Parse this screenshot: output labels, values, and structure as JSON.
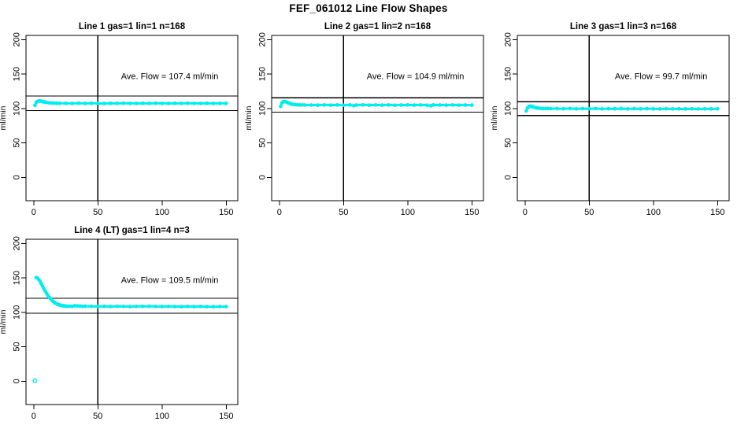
{
  "figure_title": "FEF_061012  Line Flow Shapes",
  "chart_data": {
    "type": "scatter",
    "title": "FEF_061012  Line Flow Shapes",
    "legend": "none",
    "grid": false,
    "marker": "open-circle",
    "panels": [
      {
        "position": {
          "row": 0,
          "col": 0
        },
        "title": "Line 1 gas=1 lin=1 n=168",
        "annotation": "Ave. Flow =  107.4  ml/min",
        "ave_flow_ml_min": 107.4,
        "ylabel": "ml/min",
        "x_ticks": [
          0,
          50,
          100,
          150
        ],
        "y_ticks": [
          0,
          50,
          100,
          150,
          200
        ],
        "x_range": [
          -6,
          159
        ],
        "y_range": [
          -34,
          206
        ],
        "vline_x": 50,
        "hlines": [
          118.1,
          96.7
        ],
        "marker_color": "#00EEEE",
        "points": [
          [
            1,
            104.5
          ],
          [
            2,
            108.6
          ],
          [
            3,
            110.2
          ],
          [
            4,
            110.8
          ],
          [
            5,
            110.7
          ],
          [
            6,
            110.3
          ],
          [
            7,
            109.8
          ],
          [
            8,
            109.4
          ],
          [
            9,
            109.0
          ],
          [
            10,
            108.7
          ],
          [
            12,
            108.2
          ],
          [
            14,
            107.9
          ],
          [
            16,
            107.7
          ],
          [
            18,
            107.6
          ],
          [
            20,
            107.5
          ],
          [
            25,
            107.5
          ],
          [
            30,
            107.3
          ],
          [
            35,
            107.6
          ],
          [
            40,
            107.2
          ],
          [
            45,
            107.5
          ],
          [
            50,
            107.4
          ],
          [
            55,
            107.1
          ],
          [
            60,
            107.5
          ],
          [
            65,
            107.3
          ],
          [
            70,
            107.6
          ],
          [
            75,
            107.4
          ],
          [
            80,
            107.2
          ],
          [
            85,
            107.5
          ],
          [
            90,
            107.3
          ],
          [
            95,
            107.6
          ],
          [
            100,
            107.4
          ],
          [
            105,
            107.2
          ],
          [
            110,
            107.5
          ],
          [
            115,
            107.3
          ],
          [
            120,
            107.6
          ],
          [
            125,
            107.4
          ],
          [
            130,
            107.2
          ],
          [
            135,
            107.5
          ],
          [
            140,
            107.3
          ],
          [
            145,
            107.4
          ],
          [
            150,
            107.4
          ]
        ],
        "outliers": []
      },
      {
        "position": {
          "row": 0,
          "col": 1
        },
        "title": "Line 2 gas=1 lin=2 n=168",
        "annotation": "Ave. Flow =  104.9  ml/min",
        "ave_flow_ml_min": 104.9,
        "ylabel": "ml/min",
        "x_ticks": [
          0,
          50,
          100,
          150
        ],
        "y_ticks": [
          0,
          50,
          100,
          150,
          200
        ],
        "x_range": [
          -6,
          159
        ],
        "y_range": [
          -34,
          206
        ],
        "vline_x": 50,
        "hlines": [
          115.4,
          94.4
        ],
        "marker_color": "#00EEEE",
        "points": [
          [
            1,
            103.0
          ],
          [
            2,
            107.8
          ],
          [
            3,
            109.6
          ],
          [
            4,
            110.0
          ],
          [
            5,
            109.6
          ],
          [
            6,
            108.9
          ],
          [
            7,
            108.1
          ],
          [
            8,
            107.2
          ],
          [
            9,
            106.5
          ],
          [
            10,
            106.0
          ],
          [
            12,
            105.5
          ],
          [
            14,
            105.2
          ],
          [
            16,
            105.1
          ],
          [
            18,
            105.0
          ],
          [
            20,
            104.9
          ],
          [
            25,
            104.9
          ],
          [
            30,
            104.7
          ],
          [
            35,
            105.1
          ],
          [
            40,
            104.8
          ],
          [
            45,
            105.0
          ],
          [
            50,
            104.6
          ],
          [
            55,
            105.0
          ],
          [
            58,
            103.9
          ],
          [
            60,
            104.9
          ],
          [
            65,
            105.1
          ],
          [
            70,
            104.7
          ],
          [
            75,
            105.0
          ],
          [
            80,
            104.8
          ],
          [
            85,
            105.1
          ],
          [
            90,
            104.6
          ],
          [
            95,
            104.9
          ],
          [
            100,
            105.0
          ],
          [
            105,
            104.7
          ],
          [
            110,
            105.0
          ],
          [
            115,
            104.8
          ],
          [
            118,
            103.8
          ],
          [
            120,
            105.0
          ],
          [
            125,
            104.9
          ],
          [
            130,
            104.7
          ],
          [
            135,
            105.0
          ],
          [
            140,
            104.8
          ],
          [
            145,
            104.9
          ],
          [
            150,
            104.8
          ]
        ],
        "outliers": []
      },
      {
        "position": {
          "row": 0,
          "col": 2
        },
        "title": "Line 3 gas=1 lin=3 n=168",
        "annotation": "Ave. Flow =  99.7  ml/min",
        "ave_flow_ml_min": 99.7,
        "ylabel": "ml/min",
        "x_ticks": [
          0,
          50,
          100,
          150
        ],
        "y_ticks": [
          0,
          50,
          100,
          150,
          200
        ],
        "x_range": [
          -6,
          159
        ],
        "y_range": [
          -34,
          206
        ],
        "vline_x": 50,
        "hlines": [
          109.7,
          89.7
        ],
        "marker_color": "#00EEEE",
        "points": [
          [
            1,
            96.5
          ],
          [
            2,
            100.8
          ],
          [
            3,
            102.6
          ],
          [
            4,
            103.2
          ],
          [
            5,
            103.0
          ],
          [
            6,
            102.5
          ],
          [
            7,
            101.8
          ],
          [
            8,
            101.2
          ],
          [
            9,
            100.7
          ],
          [
            10,
            100.4
          ],
          [
            12,
            100.1
          ],
          [
            14,
            99.9
          ],
          [
            16,
            99.8
          ],
          [
            18,
            99.8
          ],
          [
            20,
            99.7
          ],
          [
            25,
            99.7
          ],
          [
            30,
            99.5
          ],
          [
            35,
            99.8
          ],
          [
            40,
            99.4
          ],
          [
            45,
            99.7
          ],
          [
            50,
            99.5
          ],
          [
            55,
            99.8
          ],
          [
            60,
            99.3
          ],
          [
            65,
            99.6
          ],
          [
            70,
            99.5
          ],
          [
            75,
            99.7
          ],
          [
            80,
            99.3
          ],
          [
            85,
            99.6
          ],
          [
            90,
            99.4
          ],
          [
            95,
            99.7
          ],
          [
            100,
            99.4
          ],
          [
            105,
            99.2
          ],
          [
            110,
            99.6
          ],
          [
            115,
            99.3
          ],
          [
            120,
            99.5
          ],
          [
            125,
            99.2
          ],
          [
            130,
            99.5
          ],
          [
            135,
            99.3
          ],
          [
            140,
            99.4
          ],
          [
            145,
            99.2
          ],
          [
            150,
            99.5
          ]
        ],
        "outliers": []
      },
      {
        "position": {
          "row": 1,
          "col": 0
        },
        "title": "Line 4 (LT) gas=1 lin=4 n=3",
        "annotation": "Ave. Flow =  109.5  ml/min",
        "ave_flow_ml_min": 109.5,
        "ylabel": "ml/min",
        "x_ticks": [
          0,
          50,
          100,
          150
        ],
        "y_ticks": [
          0,
          50,
          100,
          150,
          200
        ],
        "x_range": [
          -6,
          159
        ],
        "y_range": [
          -34,
          206
        ],
        "vline_x": 50,
        "hlines": [
          120.5,
          98.6
        ],
        "marker_color": "#00EEEE",
        "points": [
          [
            2,
            150.3
          ],
          [
            3,
            149.5
          ],
          [
            4,
            147.5
          ],
          [
            5,
            144.5
          ],
          [
            6,
            141.0
          ],
          [
            7,
            137.5
          ],
          [
            8,
            134.0
          ],
          [
            9,
            130.5
          ],
          [
            10,
            127.5
          ],
          [
            11,
            124.5
          ],
          [
            12,
            122.0
          ],
          [
            13,
            119.8
          ],
          [
            14,
            117.8
          ],
          [
            15,
            116.0
          ],
          [
            16,
            114.5
          ],
          [
            17,
            113.2
          ],
          [
            18,
            112.2
          ],
          [
            19,
            111.3
          ],
          [
            20,
            110.6
          ],
          [
            21,
            110.1
          ],
          [
            22,
            109.7
          ],
          [
            23,
            109.4
          ],
          [
            24,
            109.1
          ],
          [
            25,
            108.9
          ],
          [
            26,
            108.8
          ],
          [
            28,
            108.6
          ],
          [
            30,
            108.5
          ],
          [
            32,
            109.4
          ],
          [
            34,
            109.2
          ],
          [
            36,
            109.0
          ],
          [
            38,
            108.8
          ],
          [
            40,
            108.7
          ],
          [
            45,
            108.6
          ],
          [
            50,
            108.4
          ],
          [
            55,
            108.6
          ],
          [
            60,
            108.3
          ],
          [
            65,
            108.6
          ],
          [
            70,
            108.4
          ],
          [
            75,
            108.2
          ],
          [
            80,
            108.5
          ],
          [
            85,
            108.6
          ],
          [
            90,
            108.7
          ],
          [
            95,
            108.4
          ],
          [
            100,
            108.3
          ],
          [
            105,
            108.5
          ],
          [
            110,
            108.3
          ],
          [
            115,
            108.2
          ],
          [
            120,
            108.4
          ],
          [
            125,
            108.2
          ],
          [
            130,
            108.4
          ],
          [
            135,
            108.2
          ],
          [
            140,
            108.1
          ],
          [
            145,
            108.3
          ],
          [
            150,
            108.2
          ]
        ],
        "outliers": [
          [
            1,
            0.5
          ]
        ]
      }
    ]
  }
}
